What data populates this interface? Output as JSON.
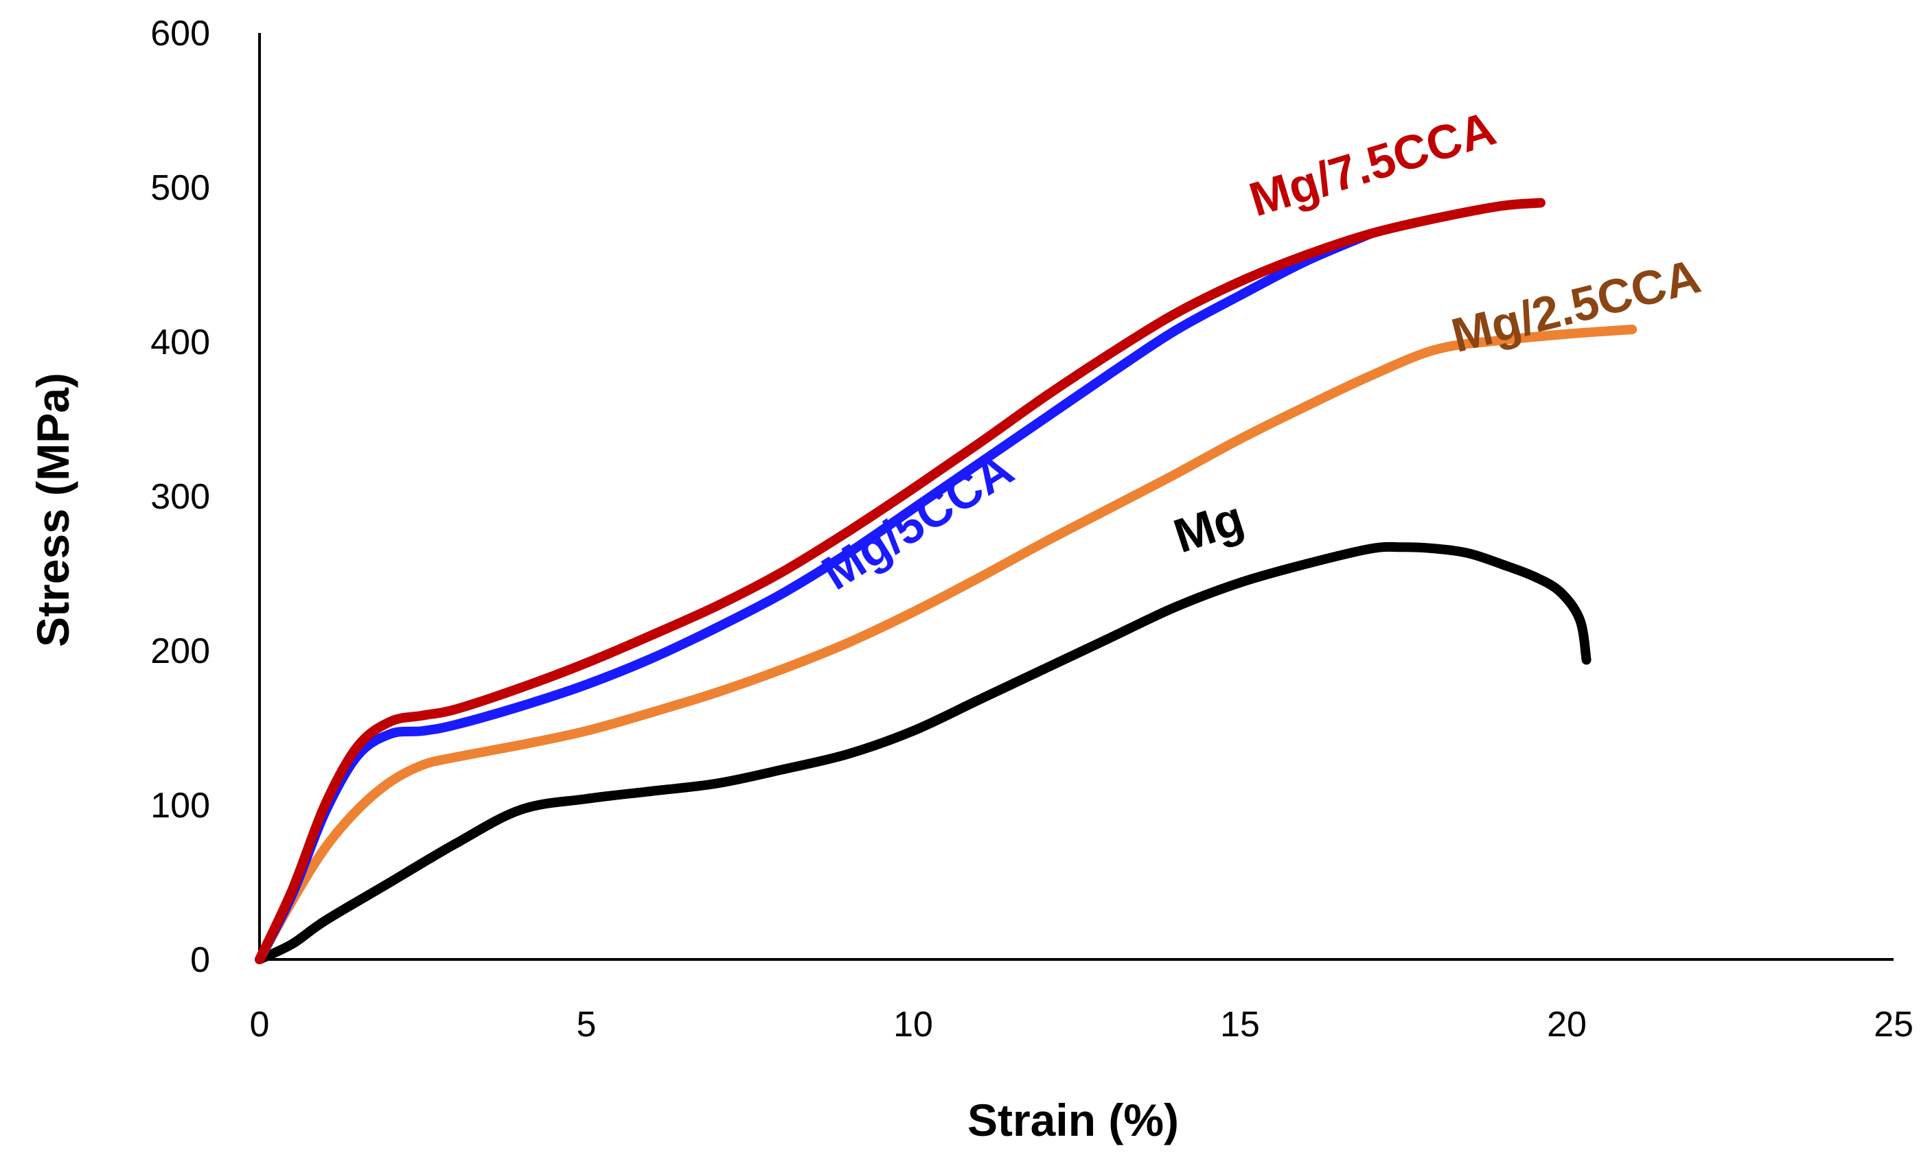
{
  "chart_data": {
    "type": "line",
    "title": "",
    "xlabel": "Strain (%)",
    "ylabel": "Stress (MPa)",
    "xlim": [
      0,
      25
    ],
    "ylim": [
      0,
      600
    ],
    "xticks": [
      0,
      5,
      10,
      15,
      20,
      25
    ],
    "yticks": [
      0,
      100,
      200,
      300,
      400,
      500,
      600
    ],
    "grid": false,
    "legend": "inline labels",
    "series": [
      {
        "name": "Mg",
        "label": "Mg",
        "color": "#000000",
        "label_color": "#000000",
        "label_anchor": {
          "x": 14.6,
          "y": 270
        },
        "label_rotation": -18,
        "x": [
          0,
          0.5,
          1,
          2,
          3,
          4,
          5,
          6,
          7,
          8,
          9,
          10,
          11,
          12,
          13,
          14,
          15,
          16,
          17,
          17.5,
          18,
          18.5,
          19,
          19.5,
          19.9,
          20.2,
          20.3
        ],
        "y": [
          0,
          10,
          25,
          50,
          75,
          97,
          104,
          109,
          114,
          123,
          133,
          148,
          168,
          188,
          208,
          228,
          244,
          256,
          266,
          267,
          266,
          263,
          256,
          248,
          238,
          220,
          194
        ]
      },
      {
        "name": "Mg/2.5CCA",
        "label": "Mg/2.5CCA",
        "color": "#ee8233",
        "label_color": "#8b4513",
        "label_anchor": {
          "x": 20.2,
          "y": 413
        },
        "label_rotation": -14,
        "x": [
          0,
          0.5,
          1,
          1.5,
          2,
          2.5,
          3,
          4,
          5,
          6,
          7,
          8,
          9,
          10,
          11,
          12,
          13,
          14,
          15,
          16,
          17,
          18,
          19,
          20,
          21
        ],
        "y": [
          0,
          38,
          72,
          97,
          115,
          126,
          131,
          139,
          148,
          160,
          173,
          188,
          205,
          225,
          247,
          270,
          292,
          314,
          337,
          358,
          378,
          395,
          401,
          405,
          408
        ]
      },
      {
        "name": "Mg/5CCA",
        "label": "Mg/5CCA",
        "color": "#1a1aff",
        "label_color": "#1a1aff",
        "label_anchor": {
          "x": 10.2,
          "y": 275
        },
        "label_rotation": -32,
        "x": [
          0,
          0.5,
          1,
          1.5,
          2,
          2.5,
          3,
          4,
          5,
          6,
          7,
          8,
          9,
          10,
          11,
          12,
          13,
          14,
          15,
          16,
          17
        ],
        "y": [
          0,
          42,
          95,
          132,
          146,
          148,
          152,
          164,
          178,
          195,
          215,
          237,
          263,
          292,
          321,
          350,
          379,
          407,
          430,
          452,
          470
        ]
      },
      {
        "name": "Mg/7.5CCA",
        "label": "Mg/7.5CCA",
        "color": "#c00000",
        "label_color": "#c00000",
        "label_anchor": {
          "x": 17.1,
          "y": 505
        },
        "label_rotation": -17,
        "x": [
          0,
          0.5,
          1,
          1.5,
          2,
          2.5,
          3,
          4,
          5,
          6,
          7,
          8,
          9,
          10,
          11,
          12,
          13,
          14,
          15,
          16,
          17,
          18,
          19,
          19.6
        ],
        "y": [
          0,
          45,
          100,
          138,
          154,
          158,
          162,
          176,
          192,
          210,
          229,
          251,
          277,
          305,
          334,
          364,
          392,
          418,
          439,
          456,
          470,
          480,
          488,
          490
        ]
      }
    ]
  }
}
